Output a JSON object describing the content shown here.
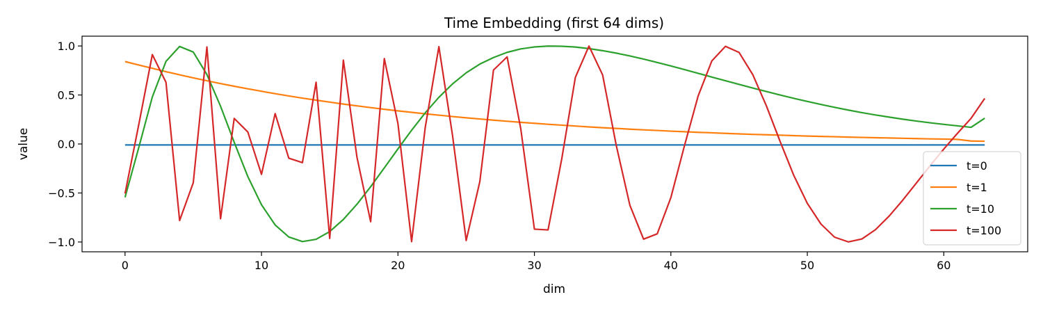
{
  "chart_data": {
    "type": "line",
    "title": "Time Embedding (first 64 dims)",
    "xlabel": "dim",
    "ylabel": "value",
    "xlim": [
      -3.15,
      66.15
    ],
    "ylim": [
      -1.1,
      1.1
    ],
    "xticks": [
      0,
      10,
      20,
      30,
      40,
      50,
      60
    ],
    "yticks": [
      -1.0,
      -0.5,
      0.0,
      0.5,
      1.0
    ],
    "ytick_labels": [
      "−1.0",
      "−0.5",
      "0.0",
      "0.5",
      "1.0"
    ],
    "grid": false,
    "legend_position": "lower-right",
    "x": [
      0,
      1,
      2,
      3,
      4,
      5,
      6,
      7,
      8,
      9,
      10,
      11,
      12,
      13,
      14,
      15,
      16,
      17,
      18,
      19,
      20,
      21,
      22,
      23,
      24,
      25,
      26,
      27,
      28,
      29,
      30,
      31,
      32,
      33,
      34,
      35,
      36,
      37,
      38,
      39,
      40,
      41,
      42,
      43,
      44,
      45,
      46,
      47,
      48,
      49,
      50,
      51,
      52,
      53,
      54,
      55,
      56,
      57,
      58,
      59,
      60,
      61,
      62,
      63
    ],
    "series": [
      {
        "name": "t=0",
        "color": "#1f77b4",
        "values": [
          -0.01,
          -0.01,
          -0.01,
          -0.01,
          -0.01,
          -0.01,
          -0.01,
          -0.01,
          -0.01,
          -0.01,
          -0.01,
          -0.01,
          -0.01,
          -0.01,
          -0.01,
          -0.01,
          -0.01,
          -0.01,
          -0.01,
          -0.01,
          -0.01,
          -0.01,
          -0.01,
          -0.01,
          -0.01,
          -0.01,
          -0.01,
          -0.01,
          -0.01,
          -0.01,
          -0.01,
          -0.01,
          -0.01,
          -0.01,
          -0.01,
          -0.01,
          -0.01,
          -0.01,
          -0.01,
          -0.01,
          -0.01,
          -0.01,
          -0.01,
          -0.01,
          -0.01,
          -0.01,
          -0.01,
          -0.01,
          -0.01,
          -0.01,
          -0.01,
          -0.01,
          -0.01,
          -0.01,
          -0.01,
          -0.01,
          -0.01,
          -0.01,
          -0.01,
          -0.01,
          -0.01,
          -0.01,
          -0.01,
          -0.01
        ]
      },
      {
        "name": "t=1",
        "color": "#ff7f0e",
        "values": [
          0.841,
          0.806,
          0.772,
          0.738,
          0.706,
          0.675,
          0.645,
          0.616,
          0.589,
          0.563,
          0.538,
          0.513,
          0.49,
          0.468,
          0.447,
          0.427,
          0.407,
          0.389,
          0.371,
          0.354,
          0.338,
          0.323,
          0.308,
          0.294,
          0.28,
          0.267,
          0.255,
          0.243,
          0.232,
          0.221,
          0.211,
          0.201,
          0.192,
          0.183,
          0.174,
          0.166,
          0.159,
          0.151,
          0.144,
          0.138,
          0.131,
          0.125,
          0.119,
          0.114,
          0.108,
          0.103,
          0.098,
          0.094,
          0.09,
          0.085,
          0.081,
          0.077,
          0.074,
          0.07,
          0.067,
          0.064,
          0.061,
          0.058,
          0.055,
          0.052,
          0.05,
          0.047,
          0.03,
          0.028
        ]
      },
      {
        "name": "t=10",
        "color": "#2ca02c",
        "values": [
          -0.544,
          -0.04,
          0.48,
          0.843,
          0.995,
          0.938,
          0.708,
          0.385,
          0.018,
          -0.333,
          -0.62,
          -0.826,
          -0.949,
          -0.996,
          -0.973,
          -0.894,
          -0.77,
          -0.614,
          -0.436,
          -0.244,
          -0.05,
          0.14,
          0.318,
          0.476,
          0.613,
          0.726,
          0.815,
          0.882,
          0.935,
          0.97,
          0.99,
          0.999,
          0.997,
          0.989,
          0.973,
          0.952,
          0.927,
          0.898,
          0.866,
          0.832,
          0.796,
          0.759,
          0.721,
          0.683,
          0.645,
          0.608,
          0.571,
          0.535,
          0.5,
          0.466,
          0.434,
          0.403,
          0.374,
          0.346,
          0.32,
          0.296,
          0.274,
          0.253,
          0.234,
          0.216,
          0.2,
          0.185,
          0.17,
          0.263
        ]
      },
      {
        "name": "t=100",
        "color": "#d62728",
        "values": [
          -0.506,
          0.193,
          0.912,
          0.63,
          -0.781,
          -0.396,
          0.99,
          -0.763,
          0.261,
          0.122,
          -0.31,
          0.31,
          -0.145,
          -0.19,
          0.63,
          -0.964,
          0.855,
          -0.137,
          -0.793,
          0.871,
          0.208,
          -0.996,
          0.169,
          0.993,
          0.087,
          -0.985,
          -0.384,
          0.754,
          0.889,
          0.155,
          -0.869,
          -0.877,
          -0.155,
          0.679,
          0.999,
          0.704,
          -0.016,
          -0.627,
          -0.971,
          -0.917,
          -0.547,
          -0.016,
          0.49,
          0.847,
          0.996,
          0.934,
          0.708,
          0.389,
          0.028,
          -0.318,
          -0.606,
          -0.817,
          -0.951,
          -0.999,
          -0.969,
          -0.874,
          -0.735,
          -0.572,
          -0.397,
          -0.221,
          -0.052,
          0.108,
          0.262,
          0.465
        ]
      }
    ]
  }
}
